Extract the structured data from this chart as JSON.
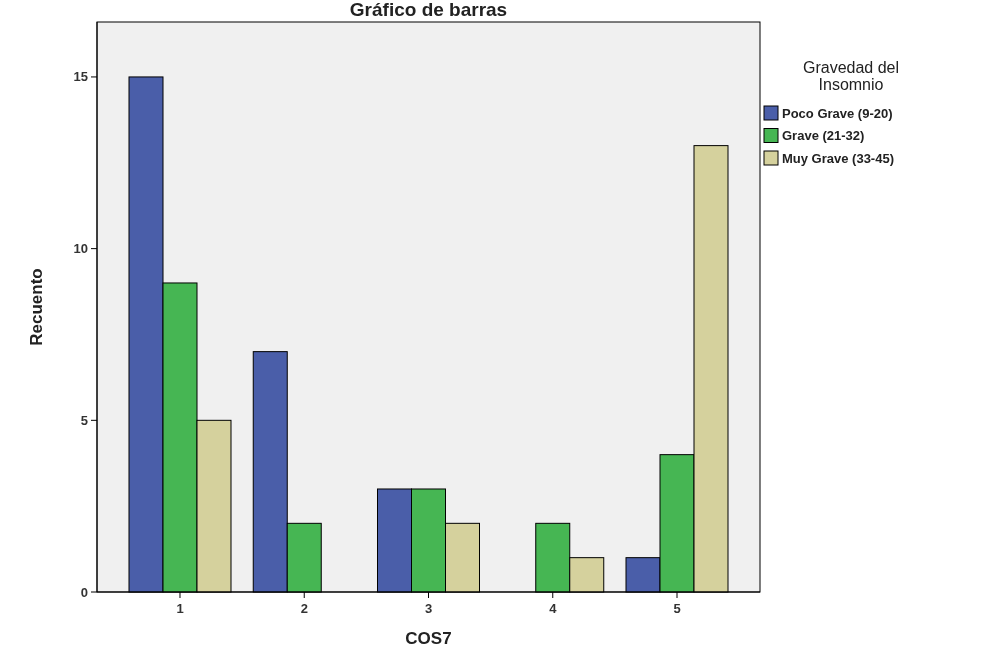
{
  "chart_data": {
    "type": "bar",
    "title": "Gráfico de barras",
    "xlabel": "COS7",
    "ylabel": "Recuento",
    "legend_title": "Gravedad del Insomnio",
    "categories": [
      "1",
      "2",
      "3",
      "4",
      "5"
    ],
    "series": [
      {
        "name": "Poco Grave (9-20)",
        "color": "#4a5ea9",
        "values": [
          15,
          7,
          3,
          null,
          1
        ]
      },
      {
        "name": "Grave (21-32)",
        "color": "#46b653",
        "values": [
          9,
          2,
          3,
          2,
          4
        ]
      },
      {
        "name": "Muy Grave (33-45)",
        "color": "#d5d19d",
        "values": [
          5,
          null,
          2,
          1,
          13
        ]
      }
    ],
    "ylim": [
      0,
      16.6
    ],
    "yticks": [
      0,
      5,
      10,
      15
    ],
    "grid": false,
    "legend": "top right"
  }
}
